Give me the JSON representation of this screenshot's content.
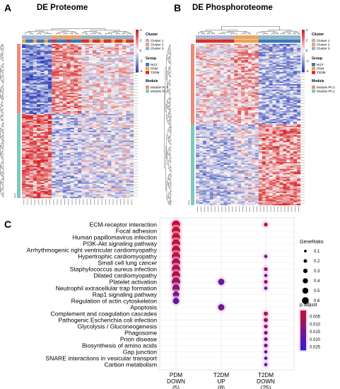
{
  "panels": {
    "a": {
      "letter": "A",
      "title": "DE Proteome"
    },
    "b": {
      "letter": "B",
      "title": "DE Phosphoroteome"
    },
    "c": {
      "letter": "C"
    }
  },
  "heatmap_legend_a": {
    "cluster_title": "Cluster",
    "cluster_items": [
      "Cluster 1",
      "Cluster 2",
      "Cluster 3"
    ],
    "group_title": "Group",
    "group_items": [
      "NGT",
      "PDM",
      "T2DM"
    ],
    "module_title": "Module",
    "module_items": [
      "Module Pr.1",
      "Module Pr.2"
    ],
    "scale_ticks": [
      "4",
      "2",
      "0",
      "-2",
      "-4"
    ]
  },
  "heatmap_legend_b": {
    "cluster_title": "Cluster",
    "cluster_items": [
      "Cluster 1",
      "Cluster 2",
      "Cluster 3"
    ],
    "group_title": "Group",
    "group_items": [
      "NGT",
      "PDM",
      "T2DM"
    ],
    "module_title": "Module",
    "module_items": [
      "Module Ph.1",
      "Module Ph.2"
    ],
    "scale_ticks": [
      "4",
      "2",
      "0",
      "-2",
      "-4"
    ]
  },
  "annotation_row_labels": {
    "a": "Group",
    "b": "Group"
  },
  "colors": {
    "cluster1": "#a6b8d8",
    "cluster2": "#e9a36a",
    "cluster3": "#8fb5c9",
    "ngt": "#3a78b5",
    "pdm": "#f0a04b",
    "t2dm": "#d7302a",
    "module1": "#f08a77",
    "module2": "#7cc9bf",
    "heat_high": "#d7191c",
    "heat_mid": "#f7f7f7",
    "heat_low": "#2c3fb8"
  },
  "chart_data": {
    "type": "scatter",
    "title": "",
    "xlabel": "",
    "ylabel": "",
    "categories": [
      "PDM\nDOWN\n(5)",
      "T2DM\nUP\n(8)",
      "T2DM\nDOWN\n(25)"
    ],
    "pathways": [
      "ECM-receptor interaction",
      "Focal adhesion",
      "Human papillomavirus infection",
      "PI3K-Akt signaling pathway",
      "Arrhythmogenic right ventricular cardiomyopathy",
      "Hypertrophic cardiomyopathy",
      "Small cell lung cancer",
      "Staphylococcus aureus infection",
      "Dilated cardiomyopathy",
      "Platelet activation",
      "Neutrophil extracellular trap formation",
      "Rap1 signaling pathway",
      "Regulation of actin cytoskeleton",
      "Apoptosis",
      "Complement and coagulation cascades",
      "Pathogenic Escherichia coli infection",
      "Glycolysis / Gluconeogenesis",
      "Phagosome",
      "Prion disease",
      "Biosynthesis of amino acids",
      "Gap junction",
      "SNARE interactions in vesicular transport",
      "Carbon metabolism"
    ],
    "points": [
      {
        "pathway": "ECM-receptor interaction",
        "category": 0,
        "gene_ratio": 0.6,
        "p_adjust": 0.001
      },
      {
        "pathway": "ECM-receptor interaction",
        "category": 2,
        "gene_ratio": 0.15,
        "p_adjust": 0.006
      },
      {
        "pathway": "Focal adhesion",
        "category": 0,
        "gene_ratio": 0.6,
        "p_adjust": 0.001
      },
      {
        "pathway": "Human papillomavirus infection",
        "category": 0,
        "gene_ratio": 0.6,
        "p_adjust": 0.002
      },
      {
        "pathway": "PI3K-Akt signaling pathway",
        "category": 0,
        "gene_ratio": 0.6,
        "p_adjust": 0.002
      },
      {
        "pathway": "Arrhythmogenic right ventricular cardiomyopathy",
        "category": 0,
        "gene_ratio": 0.6,
        "p_adjust": 0.003
      },
      {
        "pathway": "Hypertrophic cardiomyopathy",
        "category": 0,
        "gene_ratio": 0.6,
        "p_adjust": 0.004
      },
      {
        "pathway": "Hypertrophic cardiomyopathy",
        "category": 2,
        "gene_ratio": 0.1,
        "p_adjust": 0.018
      },
      {
        "pathway": "Small cell lung cancer",
        "category": 0,
        "gene_ratio": 0.6,
        "p_adjust": 0.005
      },
      {
        "pathway": "Staphylococcus aureus infection",
        "category": 0,
        "gene_ratio": 0.6,
        "p_adjust": 0.005
      },
      {
        "pathway": "Staphylococcus aureus infection",
        "category": 2,
        "gene_ratio": 0.15,
        "p_adjust": 0.009
      },
      {
        "pathway": "Dilated cardiomyopathy",
        "category": 0,
        "gene_ratio": 0.6,
        "p_adjust": 0.006
      },
      {
        "pathway": "Dilated cardiomyopathy",
        "category": 2,
        "gene_ratio": 0.1,
        "p_adjust": 0.02
      },
      {
        "pathway": "Platelet activation",
        "category": 0,
        "gene_ratio": 0.6,
        "p_adjust": 0.008
      },
      {
        "pathway": "Platelet activation",
        "category": 1,
        "gene_ratio": 0.4,
        "p_adjust": 0.017
      },
      {
        "pathway": "Platelet activation",
        "category": 2,
        "gene_ratio": 0.15,
        "p_adjust": 0.007
      },
      {
        "pathway": "Neutrophil extracellular trap formation",
        "category": 0,
        "gene_ratio": 0.5,
        "p_adjust": 0.012
      },
      {
        "pathway": "Neutrophil extracellular trap formation",
        "category": 2,
        "gene_ratio": 0.1,
        "p_adjust": 0.021
      },
      {
        "pathway": "Rap1 signaling pathway",
        "category": 0,
        "gene_ratio": 0.4,
        "p_adjust": 0.015
      },
      {
        "pathway": "Regulation of actin cytoskeleton",
        "category": 0,
        "gene_ratio": 0.4,
        "p_adjust": 0.018
      },
      {
        "pathway": "Apoptosis",
        "category": 1,
        "gene_ratio": 0.4,
        "p_adjust": 0.016
      },
      {
        "pathway": "Complement and coagulation cascades",
        "category": 2,
        "gene_ratio": 0.2,
        "p_adjust": 0.004
      },
      {
        "pathway": "Pathogenic Escherichia coli infection",
        "category": 2,
        "gene_ratio": 0.2,
        "p_adjust": 0.009
      },
      {
        "pathway": "Glycolysis / Gluconeogenesis",
        "category": 2,
        "gene_ratio": 0.15,
        "p_adjust": 0.012
      },
      {
        "pathway": "Phagosome",
        "category": 2,
        "gene_ratio": 0.15,
        "p_adjust": 0.013
      },
      {
        "pathway": "Prion disease",
        "category": 2,
        "gene_ratio": 0.15,
        "p_adjust": 0.015
      },
      {
        "pathway": "Biosynthesis of amino acids",
        "category": 2,
        "gene_ratio": 0.15,
        "p_adjust": 0.016
      },
      {
        "pathway": "Gap junction",
        "category": 2,
        "gene_ratio": 0.1,
        "p_adjust": 0.019
      },
      {
        "pathway": "SNARE interactions in vesicular transport",
        "category": 2,
        "gene_ratio": 0.1,
        "p_adjust": 0.022
      },
      {
        "pathway": "Carbon metabolism",
        "category": 2,
        "gene_ratio": 0.1,
        "p_adjust": 0.025
      }
    ],
    "size_legend": {
      "title": "GeneRatio",
      "values": [
        0.1,
        0.2,
        0.3,
        0.4,
        0.5,
        0.6
      ],
      "labels": [
        "0.1",
        "0.2",
        "0.3",
        "0.4",
        "0.5",
        "0.6"
      ]
    },
    "color_legend": {
      "title": "p.adjust",
      "range": [
        0.001,
        0.027
      ],
      "ticks": [
        0.005,
        0.01,
        0.015,
        0.02,
        0.025
      ],
      "labels": [
        "0.005",
        "0.010",
        "0.015",
        "0.020",
        "0.025"
      ],
      "high_color": "#c8102e",
      "low_color": "#2a1fd9"
    },
    "grid": true,
    "legend_placement": "right"
  }
}
